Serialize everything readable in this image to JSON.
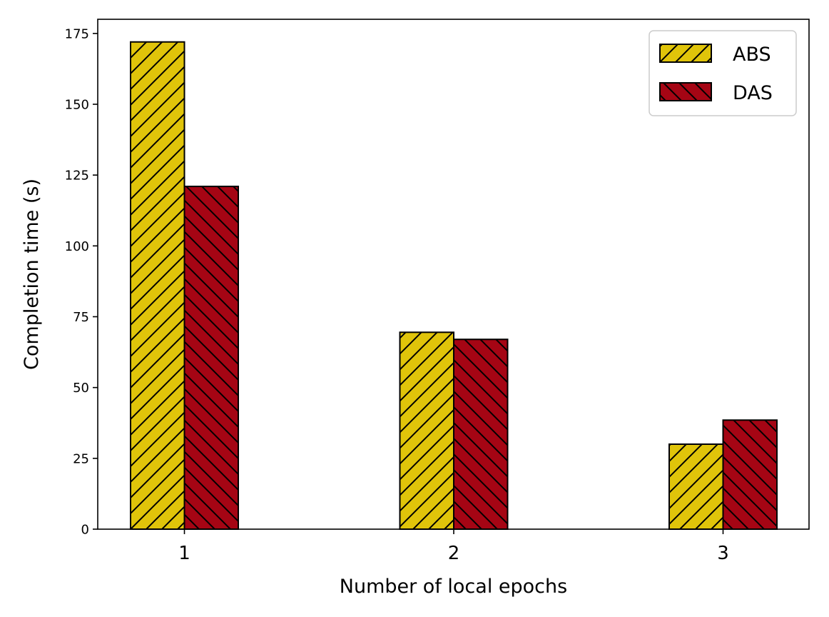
{
  "chart_data": {
    "type": "bar",
    "categories": [
      "1",
      "2",
      "3"
    ],
    "series": [
      {
        "name": "ABS",
        "values": [
          172,
          69.5,
          30
        ],
        "color": "#e0c40a",
        "hatch": "forward-slash"
      },
      {
        "name": "DAS",
        "values": [
          121,
          67,
          38.5
        ],
        "color": "#a50514",
        "hatch": "back-slash"
      }
    ],
    "title": "",
    "xlabel": "Number of local epochs",
    "ylabel": "Completion time (s)",
    "ylim": [
      0,
      180
    ],
    "yticks": [
      0,
      25,
      50,
      75,
      100,
      125,
      150,
      175
    ],
    "grid": false,
    "legend_position": "top-right"
  }
}
